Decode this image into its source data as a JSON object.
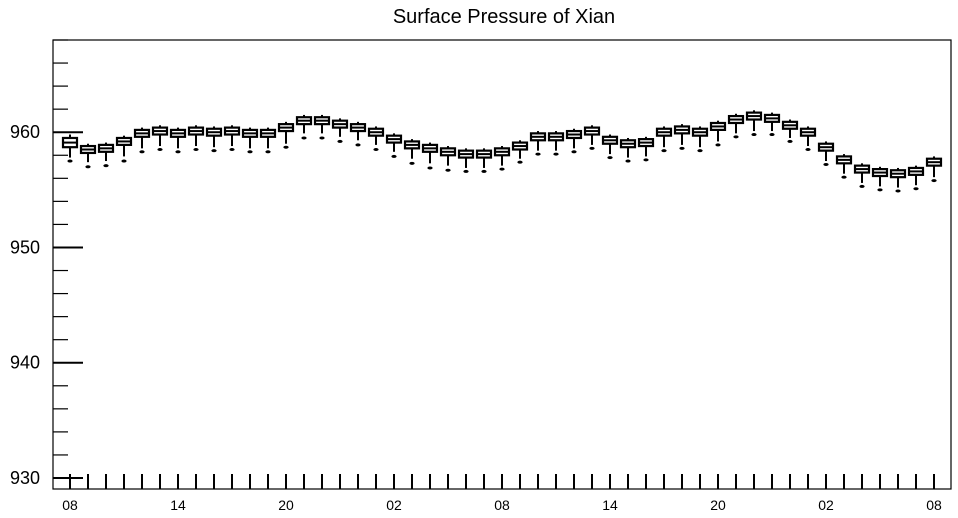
{
  "chart_data": {
    "type": "boxplot",
    "title": "Surface Pressure of Xian",
    "xlabel": "",
    "ylabel": "",
    "ylim": [
      930,
      968
    ],
    "y_ticks": [
      930,
      940,
      950,
      960
    ],
    "x_tick_labels": [
      "08",
      "14",
      "20",
      "02",
      "08",
      "14",
      "20",
      "02",
      "08"
    ],
    "x_tick_label_steps": [
      0,
      6,
      12,
      18,
      24,
      30,
      36,
      42,
      48
    ],
    "grid": false,
    "legend": "none",
    "series": [
      {
        "medians": [
          959.1,
          958.5,
          958.6,
          959.2,
          959.9,
          960.1,
          959.9,
          960.1,
          960.0,
          960.1,
          959.9,
          959.9,
          960.4,
          961.0,
          961.0,
          960.7,
          960.4,
          960.0,
          959.4,
          958.9,
          958.6,
          958.3,
          958.1,
          958.1,
          958.3,
          958.8,
          959.6,
          959.6,
          959.8,
          960.1,
          959.3,
          959.0,
          959.1,
          960.0,
          960.2,
          960.0,
          960.5,
          961.1,
          961.4,
          961.2,
          960.6,
          960.0,
          958.7,
          957.6,
          956.8,
          956.5,
          956.4,
          956.6,
          957.4
        ],
        "q1": [
          958.7,
          958.2,
          958.3,
          958.9,
          959.6,
          959.8,
          959.6,
          959.8,
          959.7,
          959.8,
          959.6,
          959.6,
          960.1,
          960.7,
          960.7,
          960.4,
          960.1,
          959.7,
          959.1,
          958.6,
          958.3,
          958.0,
          957.8,
          957.8,
          958.0,
          958.5,
          959.3,
          959.3,
          959.5,
          959.8,
          959.0,
          958.7,
          958.8,
          959.7,
          959.9,
          959.7,
          960.2,
          960.8,
          961.1,
          960.9,
          960.3,
          959.7,
          958.4,
          957.3,
          956.5,
          956.2,
          956.1,
          956.3,
          957.1
        ],
        "q3": [
          959.5,
          958.8,
          958.9,
          959.5,
          960.2,
          960.4,
          960.2,
          960.4,
          960.3,
          960.4,
          960.2,
          960.2,
          960.7,
          961.3,
          961.3,
          961.0,
          960.7,
          960.3,
          959.7,
          959.2,
          958.9,
          958.6,
          958.4,
          958.4,
          958.6,
          959.1,
          959.9,
          959.9,
          960.1,
          960.4,
          959.6,
          959.3,
          959.4,
          960.3,
          960.5,
          960.3,
          960.8,
          961.4,
          961.7,
          961.5,
          960.9,
          960.3,
          959.0,
          957.9,
          957.1,
          956.8,
          956.7,
          956.9,
          957.7
        ],
        "lower_whisker": [
          957.8,
          957.4,
          957.5,
          957.9,
          958.6,
          958.8,
          958.6,
          958.8,
          958.7,
          958.8,
          958.6,
          958.6,
          959.0,
          959.9,
          959.9,
          959.6,
          959.3,
          958.9,
          958.3,
          957.7,
          957.3,
          957.1,
          956.9,
          956.9,
          957.1,
          957.7,
          958.4,
          958.4,
          958.6,
          958.9,
          958.1,
          957.8,
          957.9,
          958.7,
          958.9,
          958.7,
          959.2,
          959.9,
          960.1,
          960.1,
          959.5,
          958.8,
          957.5,
          956.4,
          955.6,
          955.3,
          955.2,
          955.4,
          956.1
        ],
        "upper_whisker": [
          959.8,
          959.0,
          959.1,
          959.7,
          960.4,
          960.6,
          960.4,
          960.6,
          960.5,
          960.6,
          960.4,
          960.4,
          960.9,
          961.5,
          961.5,
          961.2,
          960.9,
          960.5,
          959.9,
          959.4,
          959.1,
          958.8,
          958.6,
          958.6,
          958.8,
          959.3,
          960.1,
          960.1,
          960.3,
          960.6,
          959.8,
          959.5,
          959.6,
          960.5,
          960.7,
          960.5,
          961.0,
          961.6,
          961.9,
          961.7,
          961.1,
          960.5,
          959.2,
          958.1,
          957.3,
          957.0,
          956.9,
          957.1,
          957.9
        ],
        "outliers": [
          957.5,
          957.0,
          957.1,
          957.5,
          958.3,
          958.5,
          958.3,
          958.5,
          958.4,
          958.5,
          958.3,
          958.3,
          958.7,
          959.5,
          959.5,
          959.2,
          958.9,
          958.5,
          957.9,
          957.3,
          956.9,
          956.7,
          956.6,
          956.6,
          956.8,
          957.4,
          958.1,
          958.1,
          958.3,
          958.6,
          957.8,
          957.5,
          957.6,
          958.4,
          958.6,
          958.4,
          958.9,
          959.6,
          959.8,
          959.8,
          959.2,
          958.5,
          957.2,
          956.1,
          955.3,
          955.0,
          954.9,
          955.1,
          955.8
        ]
      }
    ]
  }
}
